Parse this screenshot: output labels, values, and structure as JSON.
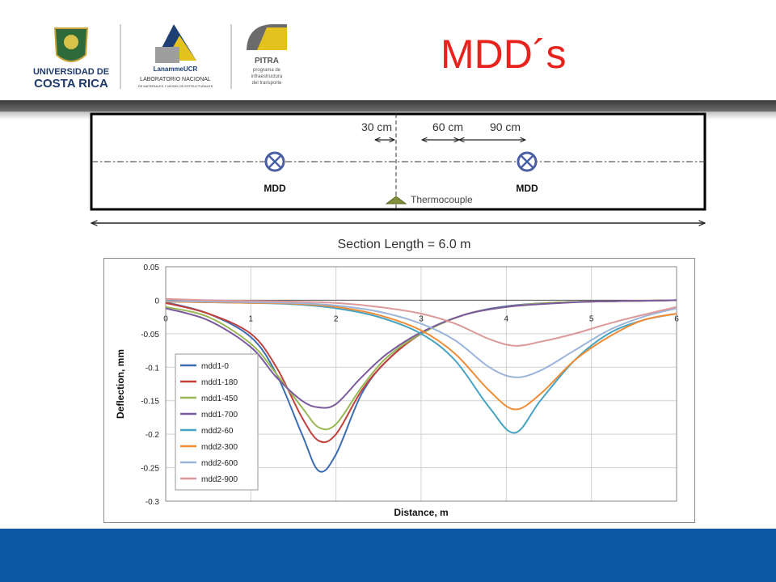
{
  "header": {
    "title": "MDD´s",
    "logos": [
      {
        "name": "university-logo",
        "lines": [
          "UNIVERSIDAD DE",
          "COSTA RICA"
        ]
      },
      {
        "name": "lanamme-logo",
        "lines": [
          "LanammeUCR",
          "LABORATORIO NACIONAL",
          "DE MATERIALES Y MODELOS ESTRUCTURALES"
        ]
      },
      {
        "name": "pitra-logo",
        "lines": [
          "PITRA",
          "programa de",
          "infraestructura",
          "del transporte"
        ]
      }
    ]
  },
  "schematic": {
    "dist_labels": [
      "30 cm",
      "60 cm",
      "90 cm"
    ],
    "mdd_left": "MDD",
    "mdd_right": "MDD",
    "thermocouple": "Thermocouple",
    "section_length": "Section Length = 6.0 m"
  },
  "colors": {
    "title": "#e8221c",
    "band": "#0e58a6"
  },
  "chart_data": {
    "type": "line",
    "xlabel": "Distance, m",
    "ylabel": "Deflection, mm",
    "xlim": [
      0,
      6
    ],
    "ylim": [
      -0.3,
      0.05
    ],
    "xticks": [
      0,
      1,
      2,
      3,
      4,
      5,
      6
    ],
    "yticks": [
      0.05,
      0,
      -0.05,
      -0.1,
      -0.15,
      -0.2,
      -0.25,
      -0.3
    ],
    "ytick_labels": [
      "0.05",
      "0",
      "-0.05",
      "-0.1",
      "-0.15",
      "-0.2",
      "-0.25",
      "-0.3"
    ],
    "grid": true,
    "legend_position": "bottom-left",
    "series": [
      {
        "name": "mdd1-0",
        "color": "#3d6db1",
        "x": [
          0,
          0.5,
          1,
          1.3,
          1.6,
          1.8,
          2.0,
          2.3,
          2.6,
          3.0,
          3.5,
          4.0,
          4.5,
          5.0,
          5.5,
          6.0
        ],
        "values": [
          -0.003,
          -0.02,
          -0.055,
          -0.11,
          -0.2,
          -0.255,
          -0.23,
          -0.14,
          -0.09,
          -0.05,
          -0.022,
          -0.009,
          -0.004,
          -0.002,
          -0.001,
          0
        ]
      },
      {
        "name": "mdd1-180",
        "color": "#c2403c",
        "x": [
          0,
          0.5,
          1,
          1.3,
          1.6,
          1.8,
          2.0,
          2.3,
          2.6,
          3.0,
          3.5,
          4.0,
          4.5,
          5.0,
          5.5,
          6.0
        ],
        "values": [
          -0.004,
          -0.02,
          -0.05,
          -0.1,
          -0.175,
          -0.21,
          -0.2,
          -0.135,
          -0.09,
          -0.05,
          -0.022,
          -0.01,
          -0.004,
          -0.002,
          -0.001,
          0
        ]
      },
      {
        "name": "mdd1-450",
        "color": "#97b852",
        "x": [
          0,
          0.5,
          1,
          1.3,
          1.6,
          1.8,
          2.0,
          2.3,
          2.6,
          3.0,
          3.5,
          4.0,
          4.5,
          5.0,
          5.5,
          6.0
        ],
        "values": [
          -0.01,
          -0.025,
          -0.065,
          -0.11,
          -0.16,
          -0.19,
          -0.185,
          -0.13,
          -0.085,
          -0.05,
          -0.022,
          -0.01,
          -0.004,
          -0.002,
          -0.001,
          0
        ]
      },
      {
        "name": "mdd1-700",
        "color": "#7c5a9e",
        "x": [
          0,
          0.5,
          1,
          1.3,
          1.6,
          1.8,
          2.0,
          2.3,
          2.6,
          3.0,
          3.5,
          4.0,
          4.5,
          5.0,
          5.5,
          6.0
        ],
        "values": [
          -0.012,
          -0.03,
          -0.07,
          -0.115,
          -0.15,
          -0.16,
          -0.155,
          -0.115,
          -0.08,
          -0.048,
          -0.022,
          -0.01,
          -0.005,
          -0.002,
          -0.001,
          0
        ]
      },
      {
        "name": "mdd2-60",
        "color": "#46a4c2",
        "x": [
          0,
          0.5,
          1,
          1.5,
          2.0,
          2.5,
          3.0,
          3.4,
          3.8,
          4.1,
          4.4,
          4.8,
          5.2,
          5.6,
          6.0
        ],
        "values": [
          -0.002,
          -0.003,
          -0.004,
          -0.006,
          -0.012,
          -0.025,
          -0.05,
          -0.09,
          -0.16,
          -0.198,
          -0.15,
          -0.09,
          -0.05,
          -0.03,
          -0.02
        ]
      },
      {
        "name": "mdd2-300",
        "color": "#f08c35",
        "x": [
          0,
          0.5,
          1,
          1.5,
          2.0,
          2.5,
          3.0,
          3.4,
          3.8,
          4.1,
          4.4,
          4.8,
          5.2,
          5.6,
          6.0
        ],
        "values": [
          -0.002,
          -0.003,
          -0.004,
          -0.005,
          -0.01,
          -0.022,
          -0.045,
          -0.08,
          -0.135,
          -0.163,
          -0.14,
          -0.09,
          -0.055,
          -0.03,
          -0.02
        ]
      },
      {
        "name": "mdd2-600",
        "color": "#9cb5db",
        "x": [
          0,
          0.5,
          1,
          1.5,
          2.0,
          2.5,
          3.0,
          3.4,
          3.8,
          4.1,
          4.4,
          4.8,
          5.2,
          5.6,
          6.0
        ],
        "values": [
          -0.001,
          -0.002,
          -0.003,
          -0.004,
          -0.008,
          -0.017,
          -0.035,
          -0.06,
          -0.1,
          -0.115,
          -0.105,
          -0.075,
          -0.045,
          -0.025,
          -0.012
        ]
      },
      {
        "name": "mdd2-900",
        "color": "#dd9999",
        "x": [
          0,
          0.5,
          1,
          1.5,
          2.0,
          2.5,
          3.0,
          3.4,
          3.8,
          4.1,
          4.4,
          4.8,
          5.2,
          5.6,
          6.0
        ],
        "values": [
          0.002,
          0,
          -0.001,
          -0.002,
          -0.004,
          -0.01,
          -0.02,
          -0.035,
          -0.058,
          -0.068,
          -0.062,
          -0.05,
          -0.035,
          -0.022,
          -0.01
        ]
      }
    ]
  }
}
